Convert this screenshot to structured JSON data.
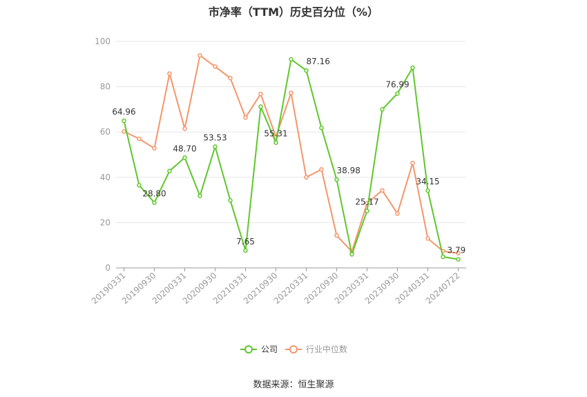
{
  "chart_data": {
    "type": "line",
    "title": "市净率（TTM）历史百分位（%）",
    "source": "数据来源：恒生聚源",
    "ylim": [
      0,
      100
    ],
    "yticks": [
      "0",
      "20",
      "40",
      "60",
      "80",
      "100"
    ],
    "x_tick_labels": [
      "20190331",
      "20190930",
      "20200331",
      "20200930",
      "20210331",
      "20210930",
      "20220331",
      "20220930",
      "20230331",
      "20230930",
      "20240331",
      "20240722"
    ],
    "x": [
      "20190331",
      "20190630",
      "20190930",
      "20191231",
      "20200331",
      "20200630",
      "20200930",
      "20201231",
      "20210331",
      "20210630",
      "20210930",
      "20211231",
      "20220331",
      "20220630",
      "20220930",
      "20221231",
      "20230331",
      "20230630",
      "20230930",
      "20231231",
      "20240331",
      "20240630",
      "20240722"
    ],
    "series": [
      {
        "name": "公司",
        "color": "#5ec62b",
        "values": [
          64.96,
          36.5,
          28.8,
          42.8,
          48.7,
          31.8,
          53.53,
          29.8,
          7.65,
          71.2,
          55.31,
          92.1,
          87.16,
          61.8,
          38.98,
          6.0,
          25.17,
          70.0,
          76.99,
          88.4,
          34.15,
          4.9,
          3.79
        ],
        "labels": {
          "0": "64.96",
          "2": "28.80",
          "4": "48.70",
          "6": "53.53",
          "8": "7.65",
          "10": "55.31",
          "12": "87.16",
          "14": "38.98",
          "16": "25.17",
          "18": "76.99",
          "20": "34.15",
          "22": "3.79"
        }
      },
      {
        "name": "行业中位数",
        "color": "#f4956a",
        "values": [
          60.2,
          57.0,
          52.8,
          85.8,
          61.5,
          93.8,
          88.9,
          83.8,
          66.4,
          76.8,
          57.9,
          77.3,
          40.0,
          43.5,
          14.3,
          7.2,
          28.5,
          34.2,
          24.0,
          46.3,
          13.0,
          7.4,
          6.5
        ]
      }
    ],
    "legend_position": "bottom-center",
    "grid": true
  }
}
